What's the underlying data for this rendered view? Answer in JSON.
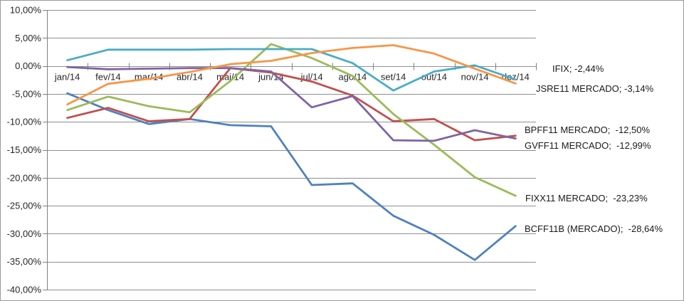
{
  "chart_data": {
    "type": "line",
    "title": "",
    "xlabel": "",
    "ylabel": "",
    "categories": [
      "jan/14",
      "fev/14",
      "mar/14",
      "abr/14",
      "mai/14",
      "jun/14",
      "jul/14",
      "ago/14",
      "set/14",
      "out/14",
      "nov/14",
      "dez/14"
    ],
    "ylim": [
      -40,
      10
    ],
    "grid": true,
    "legend_position": "right-of-last-point",
    "colors": {
      "grid": "#8f8f8f",
      "axis": "#7f7f7f",
      "text": "#262626",
      "background": "#ffffff"
    },
    "y_ticks": [
      {
        "label": "10,00%",
        "value": 10
      },
      {
        "label": "5,00%",
        "value": 5
      },
      {
        "label": "0,00%",
        "value": 0
      },
      {
        "label": "-5,00%",
        "value": -5
      },
      {
        "label": "-10,00%",
        "value": -10
      },
      {
        "label": "-15,00%",
        "value": -15
      },
      {
        "label": "-20,00%",
        "value": -20
      },
      {
        "label": "-25,00%",
        "value": -25
      },
      {
        "label": "-30,00%",
        "value": -30
      },
      {
        "label": "-35,00%",
        "value": -35
      },
      {
        "label": "-40,00%",
        "value": -40
      }
    ],
    "series": [
      {
        "key": "bcff11b",
        "name": "BCFF11B (MERCADO)",
        "color": "#4F81BD",
        "end_label": "BCFF11B (MERCADO);  -28,64%",
        "final_value": "-28,64%",
        "values": [
          -4.9,
          -7.9,
          -10.4,
          -9.5,
          -10.6,
          -10.8,
          -21.3,
          -21.0,
          -26.8,
          -30.2,
          -34.7,
          -28.64
        ]
      },
      {
        "key": "bpff11",
        "name": "BPFF11 MERCADO",
        "color": "#C0504D",
        "end_label": "BPFF11 MERCADO;  -12,50%",
        "final_value": "-12,50%",
        "values": [
          -9.3,
          -7.5,
          -9.9,
          -9.5,
          -0.4,
          -1.2,
          -2.8,
          -5.3,
          -9.9,
          -9.5,
          -13.3,
          -12.5
        ]
      },
      {
        "key": "fixx11",
        "name": "FIXX11 MERCADO",
        "color": "#9BBB59",
        "end_label": "FIXX11 MERCADO;  -23,23%",
        "final_value": "-23,23%",
        "values": [
          -7.9,
          -5.5,
          -7.2,
          -8.3,
          -2.7,
          3.9,
          1.4,
          -1.8,
          -8.6,
          -14.1,
          -19.9,
          -23.23
        ]
      },
      {
        "key": "gvff11",
        "name": "GVFF11 MERCADO",
        "color": "#8064A2",
        "end_label": "GVFF11 MERCADO;  -12,99%",
        "final_value": "-12,99%",
        "values": [
          -0.2,
          -0.6,
          -0.5,
          -0.4,
          -0.4,
          -1.0,
          -7.4,
          -5.4,
          -13.3,
          -13.4,
          -11.5,
          -12.99
        ]
      },
      {
        "key": "ifix",
        "name": "IFIX",
        "color": "#4BACC6",
        "end_label": "IFIX; -2,44%",
        "final_value": "-2,44%",
        "values": [
          1.0,
          2.9,
          2.9,
          2.9,
          3.0,
          3.0,
          3.0,
          0.5,
          -4.4,
          -1.0,
          0.1,
          -2.44
        ]
      },
      {
        "key": "jsre11",
        "name": "JSRE11 MERCADO",
        "color": "#F79646",
        "end_label": "JSRE11 MERCADO; -3,14%",
        "final_value": "-3,14%",
        "values": [
          -6.9,
          -3.2,
          -2.3,
          -1.1,
          0.3,
          0.9,
          2.3,
          3.2,
          3.7,
          2.2,
          -0.5,
          -3.14
        ]
      }
    ]
  }
}
